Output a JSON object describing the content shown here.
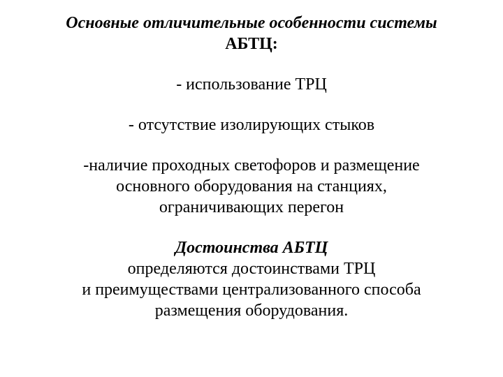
{
  "text_color": "#000000",
  "background_color": "#ffffff",
  "font_family": "Times New Roman",
  "heading": {
    "line1": "Основные отличительные особенности системы",
    "line2": "АБТЦ:"
  },
  "bullets": {
    "b1": "- использование ТРЦ",
    "b2": "- отсутствие изолирующих стыков",
    "b3_l1": "-наличие проходных светофоров и размещение",
    "b3_l2": "основного оборудования на станциях,",
    "b3_l3": "ограничивающих перегон"
  },
  "advantages": {
    "title": "Достоинства АБТЦ",
    "l1": "определяются достоинствами ТРЦ",
    "l2": "и преимуществами централизованного способа",
    "l3": "размещения оборудования."
  }
}
